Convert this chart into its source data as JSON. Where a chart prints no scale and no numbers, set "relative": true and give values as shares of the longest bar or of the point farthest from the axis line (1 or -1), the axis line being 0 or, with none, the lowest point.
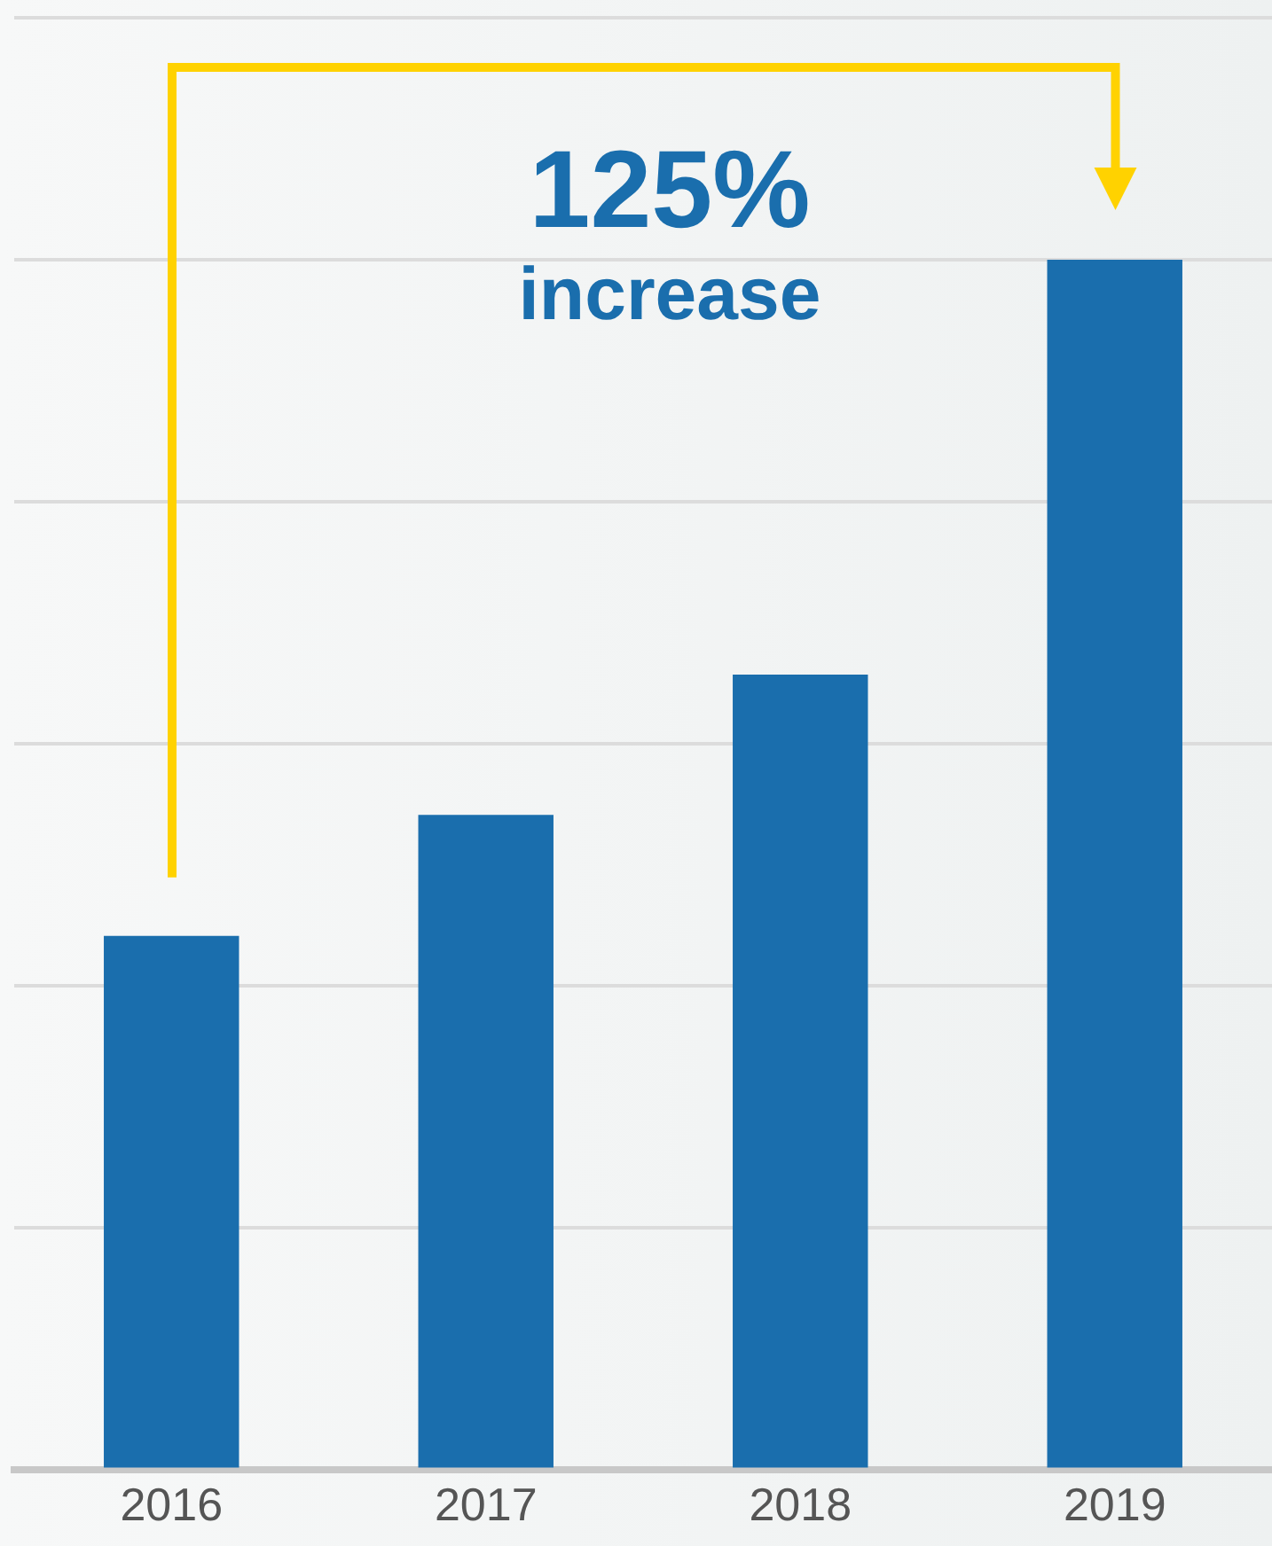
{
  "chart_data": {
    "type": "bar",
    "relative": true,
    "categories": [
      "2016",
      "2017",
      "2018",
      "2019"
    ],
    "values": [
      0.441,
      0.541,
      0.657,
      1
    ],
    "color": "#1a6ead",
    "grid": "y",
    "annotations": [
      "125%",
      "increase"
    ]
  }
}
